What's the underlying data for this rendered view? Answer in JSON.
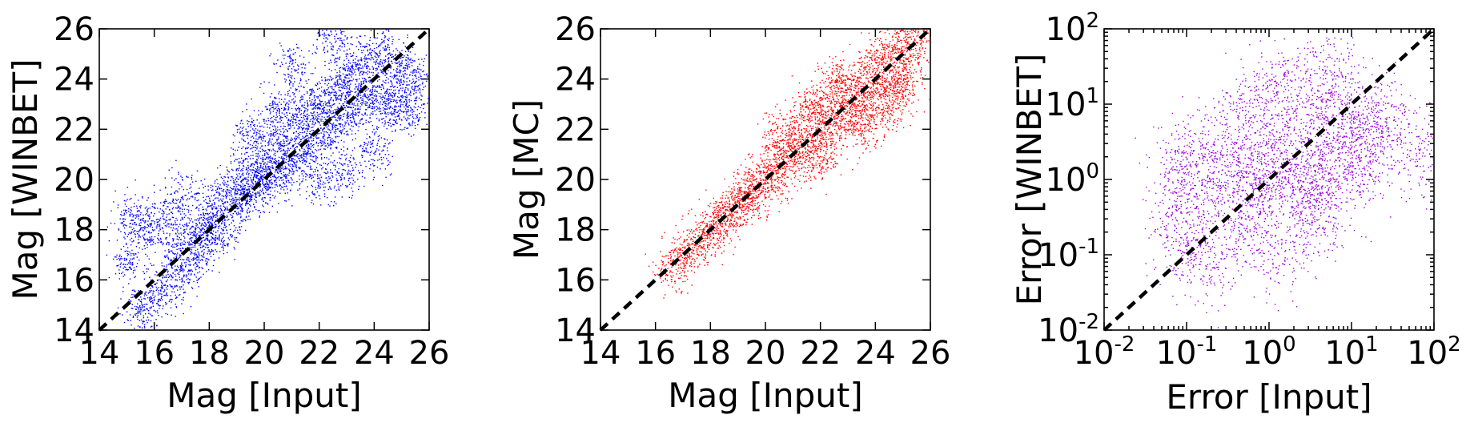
{
  "chart_data": [
    {
      "type": "scatter",
      "name": "mag-winbet-vs-input",
      "xlabel": "Mag [Input]",
      "ylabel": "Mag [WINBET]",
      "xlim": [
        14,
        26
      ],
      "ylim": [
        14,
        26
      ],
      "xticks": [
        "14",
        "16",
        "18",
        "20",
        "22",
        "24",
        "26"
      ],
      "yticks": [
        "14",
        "16",
        "18",
        "20",
        "22",
        "24",
        "26"
      ],
      "xscale": "linear",
      "yscale": "linear",
      "color": "#0000ff",
      "reference_line": "y = x (dashed)",
      "points": [
        [
          15.0,
          16.8
        ],
        [
          15.2,
          18.6
        ],
        [
          15.5,
          14.7
        ],
        [
          15.7,
          17.9
        ],
        [
          16.0,
          15.3
        ],
        [
          16.3,
          18.5
        ],
        [
          16.5,
          15.9
        ],
        [
          16.8,
          17.2
        ],
        [
          17.0,
          19.4
        ],
        [
          17.2,
          16.4
        ],
        [
          17.5,
          18.0
        ],
        [
          17.7,
          17.3
        ],
        [
          18.0,
          18.2
        ],
        [
          18.3,
          19.0
        ],
        [
          18.5,
          17.9
        ],
        [
          18.8,
          19.6
        ],
        [
          19.0,
          19.1
        ],
        [
          19.3,
          20.4
        ],
        [
          19.5,
          19.3
        ],
        [
          19.8,
          20.2
        ],
        [
          20.0,
          20.0
        ],
        [
          20.2,
          21.3
        ],
        [
          20.5,
          20.1
        ],
        [
          20.8,
          21.6
        ],
        [
          21.0,
          20.7
        ],
        [
          21.2,
          22.4
        ],
        [
          21.5,
          21.2
        ],
        [
          21.7,
          22.9
        ],
        [
          22.0,
          21.8
        ],
        [
          22.2,
          23.4
        ],
        [
          22.5,
          22.1
        ],
        [
          22.8,
          23.7
        ],
        [
          23.0,
          22.6
        ],
        [
          23.2,
          24.3
        ],
        [
          23.5,
          23.0
        ],
        [
          23.7,
          24.8
        ],
        [
          24.0,
          23.4
        ],
        [
          24.3,
          25.2
        ],
        [
          24.5,
          22.9
        ],
        [
          24.8,
          24.6
        ],
        [
          25.0,
          23.3
        ],
        [
          25.3,
          22.7
        ],
        [
          25.5,
          24.0
        ],
        [
          21.0,
          24.5
        ],
        [
          22.5,
          25.6
        ],
        [
          20.5,
          22.9
        ],
        [
          23.0,
          20.4
        ],
        [
          24.0,
          21.2
        ],
        [
          19.5,
          21.8
        ],
        [
          22.0,
          19.9
        ]
      ]
    },
    {
      "type": "scatter",
      "name": "mag-mc-vs-input",
      "xlabel": "Mag [Input]",
      "ylabel": "Mag [MC]",
      "xlim": [
        14,
        26
      ],
      "ylim": [
        14,
        26
      ],
      "xticks": [
        "14",
        "16",
        "18",
        "20",
        "22",
        "24",
        "26"
      ],
      "yticks": [
        "14",
        "16",
        "18",
        "20",
        "22",
        "24",
        "26"
      ],
      "xscale": "linear",
      "yscale": "linear",
      "color": "#ff0000",
      "reference_line": "y = x (dashed)",
      "points": [
        [
          16.5,
          16.5
        ],
        [
          17.0,
          17.0
        ],
        [
          17.5,
          17.5
        ],
        [
          18.0,
          18.0
        ],
        [
          18.3,
          18.4
        ],
        [
          18.6,
          18.5
        ],
        [
          19.0,
          19.1
        ],
        [
          19.3,
          19.5
        ],
        [
          19.6,
          19.4
        ],
        [
          20.0,
          20.2
        ],
        [
          20.3,
          20.0
        ],
        [
          20.6,
          21.0
        ],
        [
          21.0,
          20.7
        ],
        [
          21.3,
          21.8
        ],
        [
          21.6,
          21.2
        ],
        [
          22.0,
          22.6
        ],
        [
          22.3,
          21.9
        ],
        [
          22.6,
          23.1
        ],
        [
          23.0,
          22.5
        ],
        [
          23.2,
          23.8
        ],
        [
          23.5,
          23.0
        ],
        [
          23.8,
          24.4
        ],
        [
          24.0,
          23.5
        ],
        [
          24.3,
          25.0
        ],
        [
          24.6,
          23.9
        ],
        [
          24.9,
          25.5
        ],
        [
          25.2,
          24.6
        ],
        [
          25.5,
          25.8
        ],
        [
          21.5,
          23.0
        ],
        [
          22.5,
          24.0
        ],
        [
          23.5,
          22.0
        ],
        [
          24.5,
          22.8
        ],
        [
          20.5,
          21.8
        ],
        [
          25.0,
          23.6
        ],
        [
          22.0,
          20.9
        ]
      ]
    },
    {
      "type": "scatter",
      "name": "error-winbet-vs-input",
      "xlabel": "Error [Input]",
      "ylabel": "Error [WINBET]",
      "xlim": [
        0.01,
        100
      ],
      "ylim": [
        0.01,
        100
      ],
      "xscale": "log",
      "yscale": "log",
      "xticks": [
        {
          "base": "10",
          "exp": "-2"
        },
        {
          "base": "10",
          "exp": "-1"
        },
        {
          "base": "10",
          "exp": "0"
        },
        {
          "base": "10",
          "exp": "1"
        },
        {
          "base": "10",
          "exp": "2"
        }
      ],
      "yticks": [
        {
          "base": "10",
          "exp": "-2"
        },
        {
          "base": "10",
          "exp": "-1"
        },
        {
          "base": "10",
          "exp": "0"
        },
        {
          "base": "10",
          "exp": "1"
        },
        {
          "base": "10",
          "exp": "2"
        }
      ],
      "color": "#9900dd",
      "reference_line": "y = x (dashed)",
      "points": [
        [
          0.07,
          0.3
        ],
        [
          0.08,
          1.5
        ],
        [
          0.1,
          0.12
        ],
        [
          0.12,
          2.5
        ],
        [
          0.15,
          0.5
        ],
        [
          0.2,
          0.08
        ],
        [
          0.25,
          1.0
        ],
        [
          0.3,
          4.0
        ],
        [
          0.4,
          0.2
        ],
        [
          0.5,
          1.2
        ],
        [
          0.6,
          8.0
        ],
        [
          0.7,
          0.4
        ],
        [
          0.8,
          2.0
        ],
        [
          1.0,
          0.9
        ],
        [
          1.0,
          15.0
        ],
        [
          1.2,
          0.1
        ],
        [
          1.5,
          3.0
        ],
        [
          2.0,
          0.6
        ],
        [
          2.0,
          20.0
        ],
        [
          2.5,
          1.5
        ],
        [
          3.0,
          0.3
        ],
        [
          3.5,
          6.0
        ],
        [
          4.0,
          1.0
        ],
        [
          5.0,
          25.0
        ],
        [
          5.0,
          0.5
        ],
        [
          6.0,
          3.0
        ],
        [
          8.0,
          10.0
        ],
        [
          10.0,
          1.5
        ],
        [
          12.0,
          5.0
        ],
        [
          15.0,
          2.0
        ],
        [
          20.0,
          8.0
        ],
        [
          30.0,
          4.0
        ],
        [
          70.0,
          2.0
        ]
      ]
    }
  ]
}
